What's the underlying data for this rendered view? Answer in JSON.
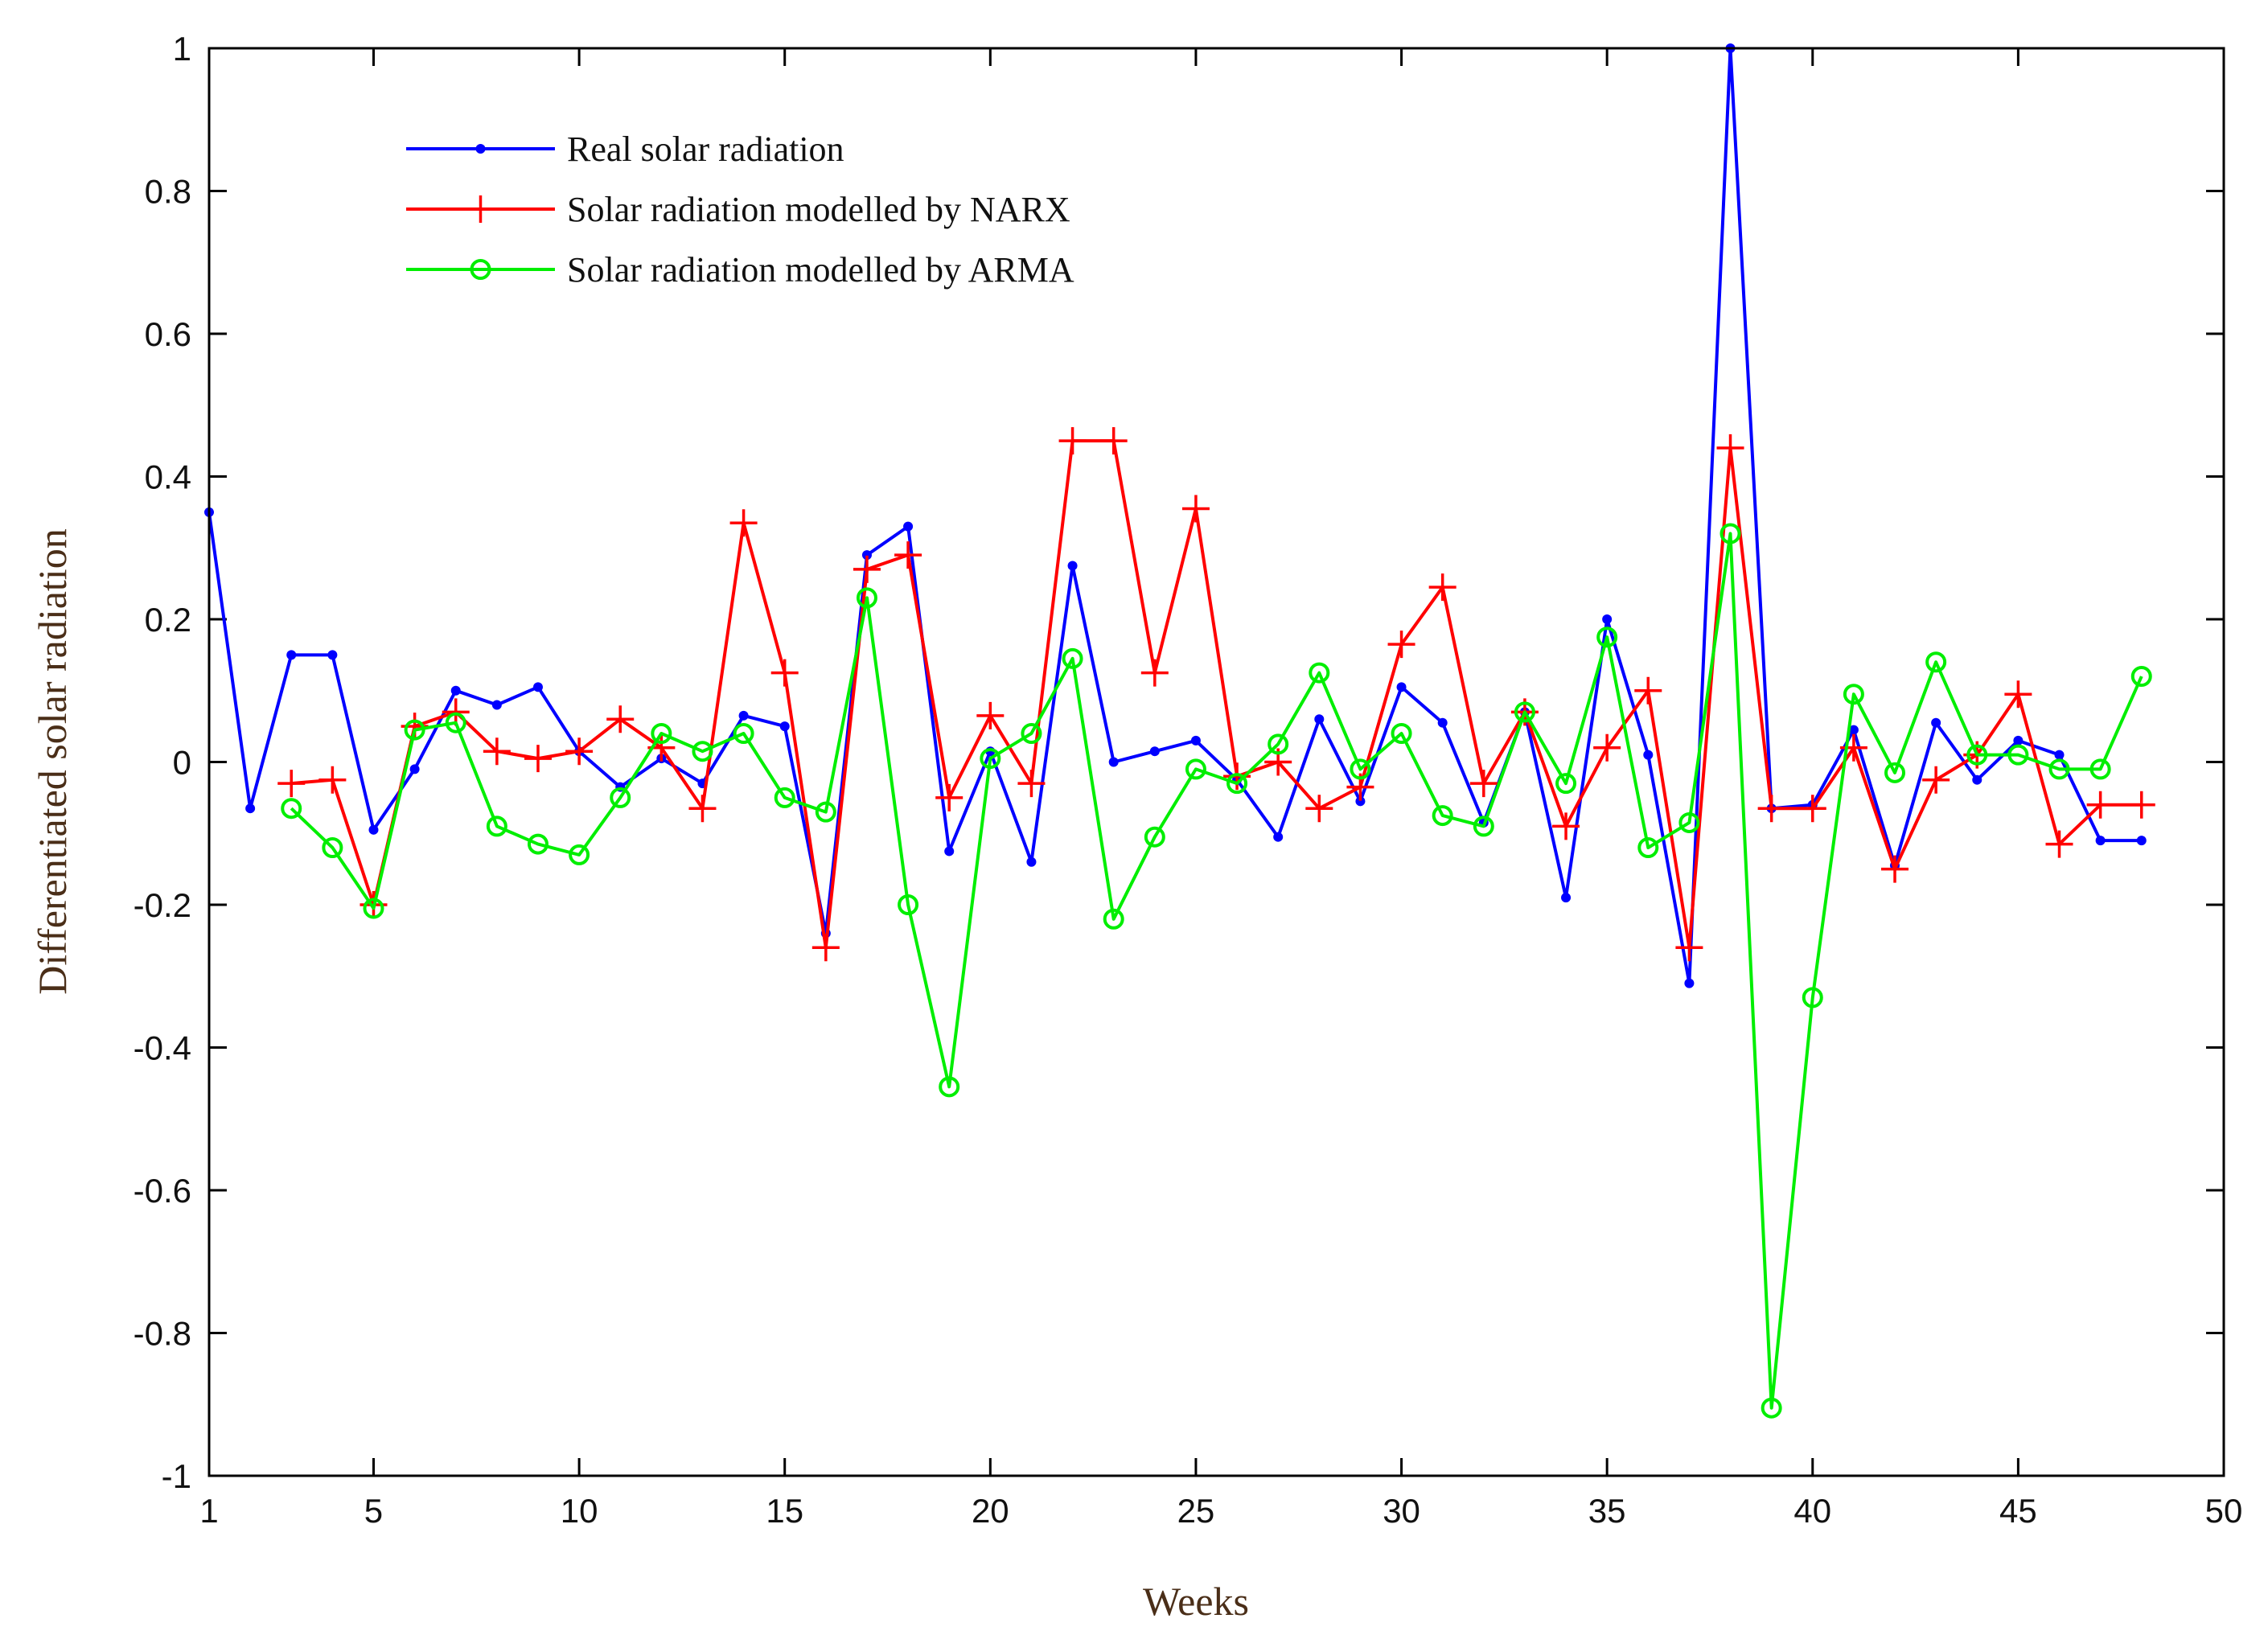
{
  "chart_data": {
    "type": "line",
    "title": "",
    "xlabel": "Weeks",
    "ylabel": "Differentiated solar radiation",
    "xlim": [
      1,
      50
    ],
    "ylim": [
      -1,
      1
    ],
    "xticks": [
      1,
      5,
      10,
      15,
      20,
      25,
      30,
      35,
      40,
      45,
      50
    ],
    "yticks": [
      1,
      0.8,
      0.6,
      0.4,
      0.2,
      0,
      -0.2,
      -0.4,
      -0.6,
      -0.8,
      -1
    ],
    "xtick_labels": [
      "1",
      "5",
      "10",
      "15",
      "20",
      "25",
      "30",
      "35",
      "40",
      "45",
      "50"
    ],
    "ytick_labels": [
      "1",
      "0.8",
      "0.6",
      "0.4",
      "0.2",
      "0",
      "-0.2",
      "-0.4",
      "-0.6",
      "-0.8",
      "-1"
    ],
    "legend_position": "top-left",
    "series": [
      {
        "name": "Real solar radiation",
        "color": "#0000ff",
        "marker": "dot",
        "x": [
          1,
          2,
          3,
          4,
          5,
          6,
          7,
          8,
          9,
          10,
          11,
          12,
          13,
          14,
          15,
          16,
          17,
          18,
          19,
          20,
          21,
          22,
          23,
          24,
          25,
          26,
          27,
          28,
          29,
          30,
          31,
          32,
          33,
          34,
          35,
          36,
          37,
          38,
          39,
          40,
          41,
          42,
          43,
          44,
          45,
          46,
          47,
          48
        ],
        "values": [
          0.35,
          -0.065,
          0.15,
          0.15,
          -0.095,
          -0.01,
          0.1,
          0.08,
          0.105,
          0.015,
          -0.035,
          0.005,
          -0.03,
          0.065,
          0.05,
          -0.24,
          0.29,
          0.33,
          -0.125,
          0.015,
          -0.14,
          0.275,
          0,
          0.015,
          0.03,
          -0.025,
          -0.105,
          0.06,
          -0.055,
          0.105,
          0.055,
          -0.085,
          0.07,
          -0.19,
          0.2,
          0.01,
          -0.31,
          1.0,
          -0.065,
          -0.06,
          0.045,
          -0.145,
          0.055,
          -0.025,
          0.03,
          0.01,
          -0.11,
          -0.11
        ]
      },
      {
        "name": "Solar radiation modelled by NARX",
        "color": "#ff0000",
        "marker": "plus",
        "x": [
          3,
          4,
          5,
          6,
          7,
          8,
          9,
          10,
          11,
          12,
          13,
          14,
          15,
          16,
          17,
          18,
          19,
          20,
          21,
          22,
          23,
          24,
          25,
          26,
          27,
          28,
          29,
          30,
          31,
          32,
          33,
          34,
          35,
          36,
          37,
          38,
          39,
          40,
          41,
          42,
          43,
          44,
          45,
          46,
          47,
          48
        ],
        "values": [
          -0.03,
          -0.025,
          -0.2,
          0.05,
          0.07,
          0.015,
          0.005,
          0.015,
          0.06,
          0.02,
          -0.065,
          0.335,
          0.125,
          -0.26,
          0.27,
          0.29,
          -0.05,
          0.065,
          -0.03,
          0.45,
          0.45,
          0.125,
          0.355,
          -0.02,
          0,
          -0.065,
          -0.035,
          0.165,
          0.245,
          -0.03,
          0.07,
          -0.09,
          0.02,
          0.1,
          -0.26,
          0.44,
          -0.065,
          -0.065,
          0.02,
          -0.15,
          -0.025,
          0.01,
          0.095,
          -0.115,
          -0.06,
          -0.06
        ]
      },
      {
        "name": "Solar radiation modelled by ARMA",
        "color": "#00ee00",
        "marker": "circle",
        "x": [
          3,
          4,
          5,
          6,
          7,
          8,
          9,
          10,
          11,
          12,
          13,
          14,
          15,
          16,
          17,
          18,
          19,
          20,
          21,
          22,
          23,
          24,
          25,
          26,
          27,
          28,
          29,
          30,
          31,
          32,
          33,
          34,
          35,
          36,
          37,
          38,
          39,
          40,
          41,
          42,
          43,
          44,
          45,
          46,
          47,
          48
        ],
        "values": [
          -0.065,
          -0.12,
          -0.205,
          0.045,
          0.055,
          -0.09,
          -0.115,
          -0.13,
          -0.05,
          0.04,
          0.015,
          0.04,
          -0.05,
          -0.07,
          0.23,
          -0.2,
          -0.455,
          0.005,
          0.04,
          0.145,
          -0.22,
          -0.105,
          -0.01,
          -0.03,
          0.025,
          0.125,
          -0.01,
          0.04,
          -0.075,
          -0.09,
          0.07,
          -0.03,
          0.175,
          -0.12,
          -0.085,
          0.32,
          -0.905,
          -0.33,
          0.095,
          -0.015,
          0.14,
          0.01,
          0.01,
          -0.01,
          -0.01,
          0.12
        ]
      }
    ]
  }
}
